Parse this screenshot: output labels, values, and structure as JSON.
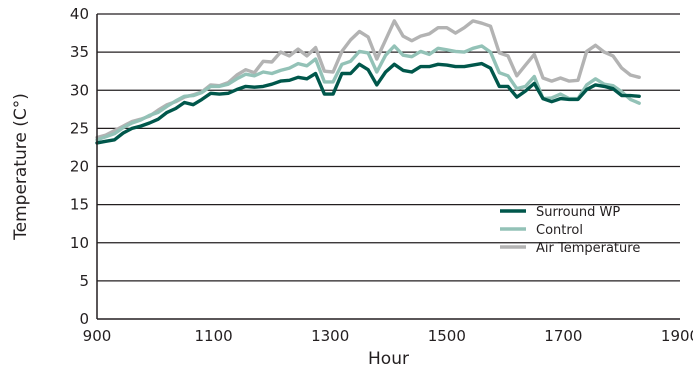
{
  "chart_data": {
    "type": "line",
    "title": "",
    "xlabel": "Hour",
    "ylabel": "Temperature (C°)",
    "xlim": [
      900,
      1900
    ],
    "ylim": [
      0,
      40
    ],
    "x_ticks": [
      900,
      1100,
      1300,
      1500,
      1700,
      1900
    ],
    "y_ticks": [
      0,
      5,
      10,
      15,
      20,
      25,
      30,
      35,
      40
    ],
    "x_tick_labels": [
      "900",
      "1100",
      "1300",
      "1500",
      "1700",
      "1900"
    ],
    "y_tick_labels": [
      "0",
      "5",
      "10",
      "15",
      "20",
      "25",
      "30",
      "35",
      "40"
    ],
    "grid": "horizontal",
    "legend_position": "right",
    "series": [
      {
        "name": "Surround WP",
        "color": "#00574b",
        "points": [
          [
            900,
            23.1
          ],
          [
            915,
            23.3
          ],
          [
            930,
            23.5
          ],
          [
            945,
            24.4
          ],
          [
            960,
            25
          ],
          [
            975,
            25.3
          ],
          [
            990,
            25.7
          ],
          [
            1005,
            26.2
          ],
          [
            1020,
            27.1
          ],
          [
            1035,
            27.6
          ],
          [
            1050,
            28.4
          ],
          [
            1065,
            28.1
          ],
          [
            1080,
            28.8
          ],
          [
            1095,
            29.6
          ],
          [
            1110,
            29.5
          ],
          [
            1125,
            29.6
          ],
          [
            1140,
            30.1
          ],
          [
            1155,
            30.5
          ],
          [
            1170,
            30.4
          ],
          [
            1185,
            30.5
          ],
          [
            1200,
            30.8
          ],
          [
            1215,
            31.2
          ],
          [
            1230,
            31.3
          ],
          [
            1245,
            31.7
          ],
          [
            1260,
            31.5
          ],
          [
            1275,
            32.2
          ],
          [
            1290,
            29.5
          ],
          [
            1305,
            29.5
          ],
          [
            1320,
            32.2
          ],
          [
            1335,
            32.2
          ],
          [
            1350,
            33.4
          ],
          [
            1365,
            32.7
          ],
          [
            1380,
            30.7
          ],
          [
            1395,
            32.4
          ],
          [
            1410,
            33.4
          ],
          [
            1425,
            32.6
          ],
          [
            1440,
            32.4
          ],
          [
            1455,
            33.1
          ],
          [
            1470,
            33.1
          ],
          [
            1485,
            33.4
          ],
          [
            1500,
            33.3
          ],
          [
            1515,
            33.1
          ],
          [
            1530,
            33.1
          ],
          [
            1545,
            33.3
          ],
          [
            1560,
            33.5
          ],
          [
            1575,
            32.9
          ],
          [
            1590,
            30.5
          ],
          [
            1605,
            30.5
          ],
          [
            1620,
            29.1
          ],
          [
            1635,
            29.9
          ],
          [
            1650,
            30.9
          ],
          [
            1665,
            28.9
          ],
          [
            1680,
            28.5
          ],
          [
            1695,
            28.9
          ],
          [
            1710,
            28.8
          ],
          [
            1725,
            28.8
          ],
          [
            1740,
            30.1
          ],
          [
            1755,
            30.7
          ],
          [
            1770,
            30.5
          ],
          [
            1785,
            30.2
          ],
          [
            1800,
            29.3
          ],
          [
            1815,
            29.3
          ],
          [
            1830,
            29.2
          ]
        ]
      },
      {
        "name": "Control",
        "color": "#93c2b7",
        "points": [
          [
            900,
            23.5
          ],
          [
            915,
            23.9
          ],
          [
            930,
            24.3
          ],
          [
            945,
            25.1
          ],
          [
            960,
            25.7
          ],
          [
            975,
            26.1
          ],
          [
            990,
            26.7
          ],
          [
            1005,
            27.1
          ],
          [
            1020,
            27.9
          ],
          [
            1035,
            28.6
          ],
          [
            1050,
            29.2
          ],
          [
            1065,
            29.3
          ],
          [
            1080,
            29.7
          ],
          [
            1095,
            30.5
          ],
          [
            1110,
            30.5
          ],
          [
            1125,
            30.8
          ],
          [
            1140,
            31.5
          ],
          [
            1155,
            32.1
          ],
          [
            1170,
            31.9
          ],
          [
            1185,
            32.4
          ],
          [
            1200,
            32.2
          ],
          [
            1215,
            32.6
          ],
          [
            1230,
            32.9
          ],
          [
            1245,
            33.5
          ],
          [
            1260,
            33.2
          ],
          [
            1275,
            34.1
          ],
          [
            1290,
            31.1
          ],
          [
            1305,
            31.1
          ],
          [
            1320,
            33.4
          ],
          [
            1335,
            33.8
          ],
          [
            1350,
            35.1
          ],
          [
            1365,
            34.9
          ],
          [
            1380,
            32.4
          ],
          [
            1395,
            34.6
          ],
          [
            1410,
            35.8
          ],
          [
            1425,
            34.6
          ],
          [
            1440,
            34.4
          ],
          [
            1455,
            35.1
          ],
          [
            1470,
            34.7
          ],
          [
            1485,
            35.5
          ],
          [
            1500,
            35.3
          ],
          [
            1515,
            35.1
          ],
          [
            1530,
            35
          ],
          [
            1545,
            35.5
          ],
          [
            1560,
            35.8
          ],
          [
            1575,
            35
          ],
          [
            1590,
            32.3
          ],
          [
            1605,
            31.9
          ],
          [
            1620,
            30.2
          ],
          [
            1635,
            30.5
          ],
          [
            1650,
            31.8
          ],
          [
            1665,
            28.9
          ],
          [
            1680,
            29
          ],
          [
            1695,
            29.5
          ],
          [
            1710,
            28.9
          ],
          [
            1725,
            28.9
          ],
          [
            1740,
            30.7
          ],
          [
            1755,
            31.5
          ],
          [
            1770,
            30.8
          ],
          [
            1785,
            30.6
          ],
          [
            1800,
            29.8
          ],
          [
            1815,
            28.8
          ],
          [
            1830,
            28.3
          ]
        ]
      },
      {
        "name": "Air Temperature",
        "color": "#b3b3b3",
        "points": [
          [
            900,
            23.8
          ],
          [
            915,
            24.1
          ],
          [
            930,
            24.7
          ],
          [
            945,
            25.3
          ],
          [
            960,
            25.9
          ],
          [
            975,
            26.2
          ],
          [
            990,
            26.6
          ],
          [
            1005,
            27.4
          ],
          [
            1020,
            28.1
          ],
          [
            1035,
            28.5
          ],
          [
            1050,
            29.1
          ],
          [
            1065,
            29.4
          ],
          [
            1080,
            29.8
          ],
          [
            1095,
            30.7
          ],
          [
            1110,
            30.6
          ],
          [
            1125,
            31
          ],
          [
            1140,
            32
          ],
          [
            1155,
            32.7
          ],
          [
            1170,
            32.3
          ],
          [
            1185,
            33.8
          ],
          [
            1200,
            33.7
          ],
          [
            1215,
            35
          ],
          [
            1230,
            34.5
          ],
          [
            1245,
            35.4
          ],
          [
            1260,
            34.5
          ],
          [
            1275,
            35.6
          ],
          [
            1290,
            32.5
          ],
          [
            1305,
            32.4
          ],
          [
            1320,
            35.1
          ],
          [
            1335,
            36.6
          ],
          [
            1350,
            37.7
          ],
          [
            1365,
            37
          ],
          [
            1380,
            34.1
          ],
          [
            1395,
            36.6
          ],
          [
            1410,
            39.1
          ],
          [
            1425,
            37.1
          ],
          [
            1440,
            36.5
          ],
          [
            1455,
            37.1
          ],
          [
            1470,
            37.4
          ],
          [
            1485,
            38.2
          ],
          [
            1500,
            38.2
          ],
          [
            1515,
            37.5
          ],
          [
            1530,
            38.2
          ],
          [
            1545,
            39.1
          ],
          [
            1560,
            38.8
          ],
          [
            1575,
            38.4
          ],
          [
            1590,
            34.9
          ],
          [
            1605,
            34.5
          ],
          [
            1620,
            31.9
          ],
          [
            1635,
            33.3
          ],
          [
            1650,
            34.7
          ],
          [
            1665,
            31.6
          ],
          [
            1680,
            31.2
          ],
          [
            1695,
            31.6
          ],
          [
            1710,
            31.2
          ],
          [
            1725,
            31.3
          ],
          [
            1740,
            35.1
          ],
          [
            1755,
            35.9
          ],
          [
            1770,
            35
          ],
          [
            1785,
            34.5
          ],
          [
            1800,
            32.9
          ],
          [
            1815,
            32
          ],
          [
            1830,
            31.7
          ]
        ]
      }
    ]
  }
}
